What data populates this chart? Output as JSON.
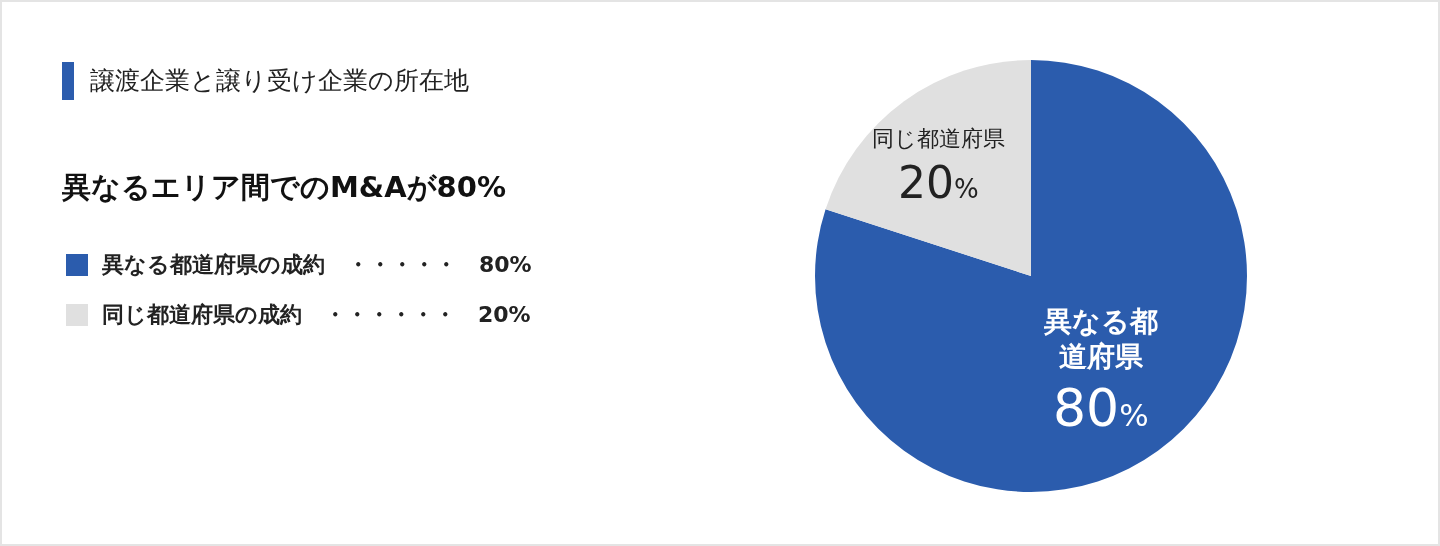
{
  "chart_data": {
    "type": "pie",
    "title": "譲渡企業と譲り受け企業の所在地",
    "subtitle": "異なるエリア間でのM&Aが80%",
    "categories": [
      "異なる都道府県",
      "同じ都道府県"
    ],
    "values": [
      80,
      20
    ],
    "colors": [
      "#2b5cad",
      "#e0e0e0"
    ],
    "value_labels": [
      "80%",
      "20%"
    ],
    "annotations": [
      "異なる都道府県の成約　・・・・・　80%",
      "同じ都道府県の成約　・・・・・・　20%"
    ]
  }
}
